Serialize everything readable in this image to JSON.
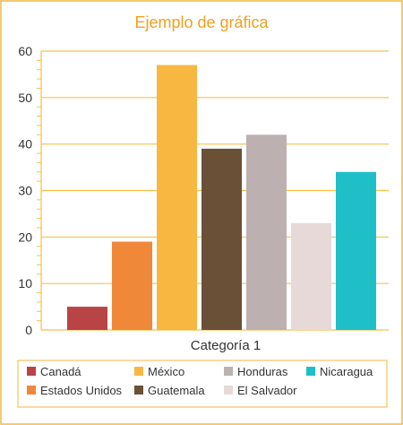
{
  "chart_data": {
    "type": "bar",
    "title": "Ejemplo de gráfica",
    "categories": [
      "Categoría 1"
    ],
    "series": [
      {
        "name": "Canadá",
        "values": [
          5
        ],
        "color": "#b84446"
      },
      {
        "name": "Estados Unidos",
        "values": [
          19
        ],
        "color": "#f0883a"
      },
      {
        "name": "México",
        "values": [
          57
        ],
        "color": "#f7b740"
      },
      {
        "name": "Guatemala",
        "values": [
          39
        ],
        "color": "#6b5038"
      },
      {
        "name": "Honduras",
        "values": [
          42
        ],
        "color": "#bcb0b0"
      },
      {
        "name": "El Salvador",
        "values": [
          23
        ],
        "color": "#e7d9d8"
      },
      {
        "name": "Nicaragua",
        "values": [
          34
        ],
        "color": "#1fbfc8"
      }
    ],
    "ylim": [
      0,
      60
    ],
    "yticks": [
      0,
      10,
      20,
      30,
      40,
      50,
      60
    ],
    "grid": true,
    "legend_position": "bottom",
    "legend_order": [
      "Canadá",
      "México",
      "Honduras",
      "Nicaragua",
      "Estados Unidos",
      "Guatemala",
      "El Salvador"
    ],
    "colors": {
      "border": "#f4b740",
      "grid": "#f7c04a",
      "title": "#f0a020",
      "text": "#333333"
    }
  }
}
